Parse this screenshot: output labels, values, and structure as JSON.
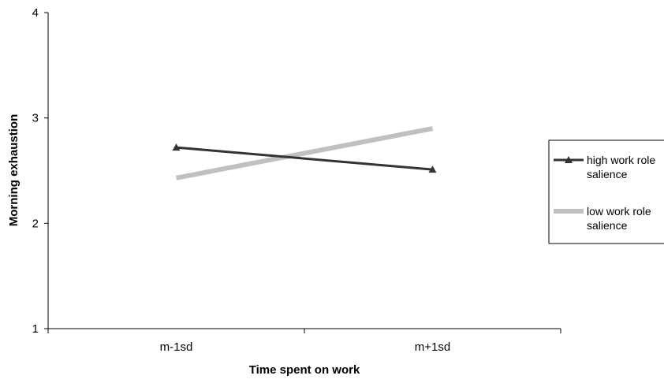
{
  "chart_data": {
    "type": "line",
    "title": "",
    "xlabel": "Time spent on work",
    "ylabel": "Morning exhaustion",
    "categories": [
      "m-1sd",
      "m+1sd"
    ],
    "ylim": [
      1,
      4
    ],
    "yticks": [
      "1",
      "2",
      "3",
      "4"
    ],
    "grid": false,
    "legend_position": "right",
    "series": [
      {
        "name": "high work role salience",
        "legend_lines": [
          "high work role",
          "salience"
        ],
        "values": [
          2.72,
          2.51
        ],
        "color": "#333333",
        "marker": "triangle"
      },
      {
        "name": "low work role salience",
        "legend_lines": [
          "low work role",
          "salience"
        ],
        "values": [
          2.43,
          2.9
        ],
        "color": "#c0c0c0",
        "marker": "none"
      }
    ]
  }
}
